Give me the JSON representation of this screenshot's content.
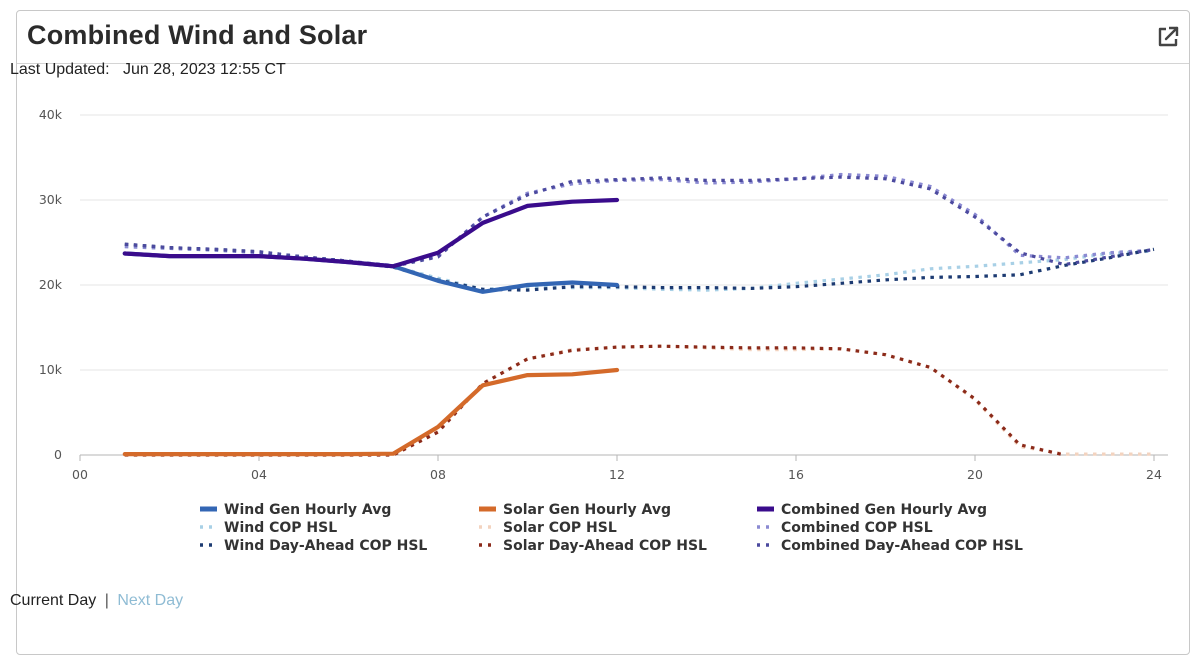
{
  "card": {
    "title": "Combined Wind and Solar",
    "open_icon": "external-link-icon",
    "last_updated_label": "Last Updated:",
    "last_updated_value": "Jun 28, 2023 12:55 CT"
  },
  "nav": {
    "current_day": "Current Day",
    "separator": "|",
    "next_day": "Next Day"
  },
  "chart_data": {
    "type": "line",
    "title": "",
    "xlabel": "",
    "ylabel": "",
    "xlim": [
      0,
      24
    ],
    "ylim": [
      0,
      40000
    ],
    "x_ticks": [
      0,
      4,
      8,
      12,
      16,
      20,
      24
    ],
    "x_tick_labels": [
      "00",
      "04",
      "08",
      "12",
      "16",
      "20",
      "24"
    ],
    "y_ticks": [
      0,
      10000,
      20000,
      30000,
      40000
    ],
    "y_tick_labels": [
      "0",
      "10k",
      "20k",
      "30k",
      "40k"
    ],
    "grid": true,
    "legend_position": "bottom",
    "series": [
      {
        "name": "Wind Gen Hourly Avg",
        "style": "solid",
        "color": "#3366b4",
        "x": [
          1,
          2,
          3,
          4,
          5,
          6,
          7,
          8,
          9,
          10,
          11,
          12
        ],
        "y": [
          23700,
          23400,
          23400,
          23400,
          23100,
          22700,
          22200,
          20500,
          19200,
          20000,
          20300,
          20000
        ]
      },
      {
        "name": "Solar Gen Hourly Avg",
        "style": "solid",
        "color": "#d46a2a",
        "x": [
          1,
          2,
          3,
          4,
          5,
          6,
          7,
          8,
          9,
          10,
          11,
          12
        ],
        "y": [
          100,
          100,
          100,
          100,
          100,
          100,
          150,
          3300,
          8200,
          9400,
          9500,
          10000
        ]
      },
      {
        "name": "Combined Gen Hourly Avg",
        "style": "solid",
        "color": "#3a0c8c",
        "x": [
          1,
          2,
          3,
          4,
          5,
          6,
          7,
          8,
          9,
          10,
          11,
          12
        ],
        "y": [
          23700,
          23400,
          23400,
          23400,
          23100,
          22700,
          22200,
          23800,
          27300,
          29300,
          29800,
          30000
        ]
      },
      {
        "name": "Wind COP HSL",
        "style": "dotted",
        "color": "#a8d0e6",
        "x": [
          1,
          2,
          3,
          4,
          5,
          6,
          7,
          8,
          9,
          10,
          11,
          12,
          13,
          14,
          15,
          16,
          17,
          18,
          19,
          20,
          21,
          22,
          23,
          24
        ],
        "y": [
          24500,
          24300,
          24100,
          23800,
          23300,
          22800,
          22200,
          20800,
          19500,
          19700,
          19700,
          19700,
          19500,
          19400,
          19600,
          20200,
          20700,
          21200,
          21900,
          22200,
          22600,
          23000,
          23700,
          24000
        ]
      },
      {
        "name": "Solar COP HSL",
        "style": "dotted",
        "color": "#f3d3bf",
        "x": [
          1,
          2,
          3,
          4,
          5,
          6,
          7,
          8,
          9,
          10,
          11,
          12,
          13,
          14,
          15,
          16,
          17,
          18,
          19,
          20,
          21,
          22,
          23,
          24
        ],
        "y": [
          0,
          0,
          0,
          0,
          0,
          0,
          100,
          2800,
          8400,
          11300,
          12400,
          12700,
          12800,
          12600,
          12400,
          12400,
          12500,
          11800,
          10300,
          6500,
          1000,
          100,
          100,
          100
        ]
      },
      {
        "name": "Combined COP HSL",
        "style": "dotted",
        "color": "#8b8ad2",
        "x": [
          1,
          2,
          3,
          4,
          5,
          6,
          7,
          8,
          9,
          10,
          11,
          12,
          13,
          14,
          15,
          16,
          17,
          18,
          19,
          20,
          21,
          22,
          23,
          24
        ],
        "y": [
          24500,
          24300,
          24100,
          23800,
          23300,
          22800,
          22300,
          23400,
          28000,
          30800,
          31900,
          32300,
          32400,
          32000,
          32100,
          32500,
          33000,
          32800,
          31600,
          28300,
          23500,
          23200,
          23800,
          24100
        ]
      },
      {
        "name": "Wind Day-Ahead COP HSL",
        "style": "dotted",
        "color": "#1d3b72",
        "x": [
          1,
          2,
          3,
          4,
          5,
          6,
          7,
          8,
          9,
          10,
          11,
          12,
          13,
          14,
          15,
          16,
          17,
          18,
          19,
          20,
          21,
          22,
          23,
          24
        ],
        "y": [
          24800,
          24400,
          24200,
          23900,
          23300,
          22800,
          22100,
          20600,
          19500,
          19400,
          19800,
          19800,
          19700,
          19700,
          19600,
          19800,
          20200,
          20600,
          20900,
          21000,
          21200,
          22300,
          23200,
          24200
        ]
      },
      {
        "name": "Solar Day-Ahead COP HSL",
        "style": "dotted",
        "color": "#8b2a1a",
        "x": [
          1,
          2,
          3,
          4,
          5,
          6,
          7,
          8,
          9,
          10,
          11,
          12,
          13,
          14,
          15,
          16,
          17,
          18,
          19,
          20,
          21,
          22
        ],
        "y": [
          0,
          0,
          0,
          0,
          0,
          0,
          0,
          2700,
          8400,
          11300,
          12300,
          12700,
          12800,
          12700,
          12600,
          12600,
          12500,
          11800,
          10300,
          6600,
          1200,
          0
        ]
      },
      {
        "name": "Combined Day-Ahead COP HSL",
        "style": "dotted",
        "color": "#4c4a9f",
        "x": [
          1,
          2,
          3,
          4,
          5,
          6,
          7,
          8,
          9,
          10,
          11,
          12,
          13,
          14,
          15,
          16,
          17,
          18,
          19,
          20,
          21,
          22,
          23,
          24
        ],
        "y": [
          24800,
          24400,
          24200,
          23900,
          23300,
          22800,
          22200,
          23300,
          28000,
          30600,
          32200,
          32400,
          32600,
          32300,
          32300,
          32500,
          32700,
          32500,
          31300,
          28000,
          23800,
          22400,
          23300,
          24200
        ]
      }
    ],
    "legend_layout": [
      [
        "Wind Gen Hourly Avg",
        "Solar Gen Hourly Avg",
        "Combined Gen Hourly Avg"
      ],
      [
        "Wind COP HSL",
        "Solar COP HSL",
        "Combined COP HSL"
      ],
      [
        "Wind Day-Ahead COP HSL",
        "Solar Day-Ahead COP HSL",
        "Combined Day-Ahead COP HSL"
      ]
    ]
  }
}
